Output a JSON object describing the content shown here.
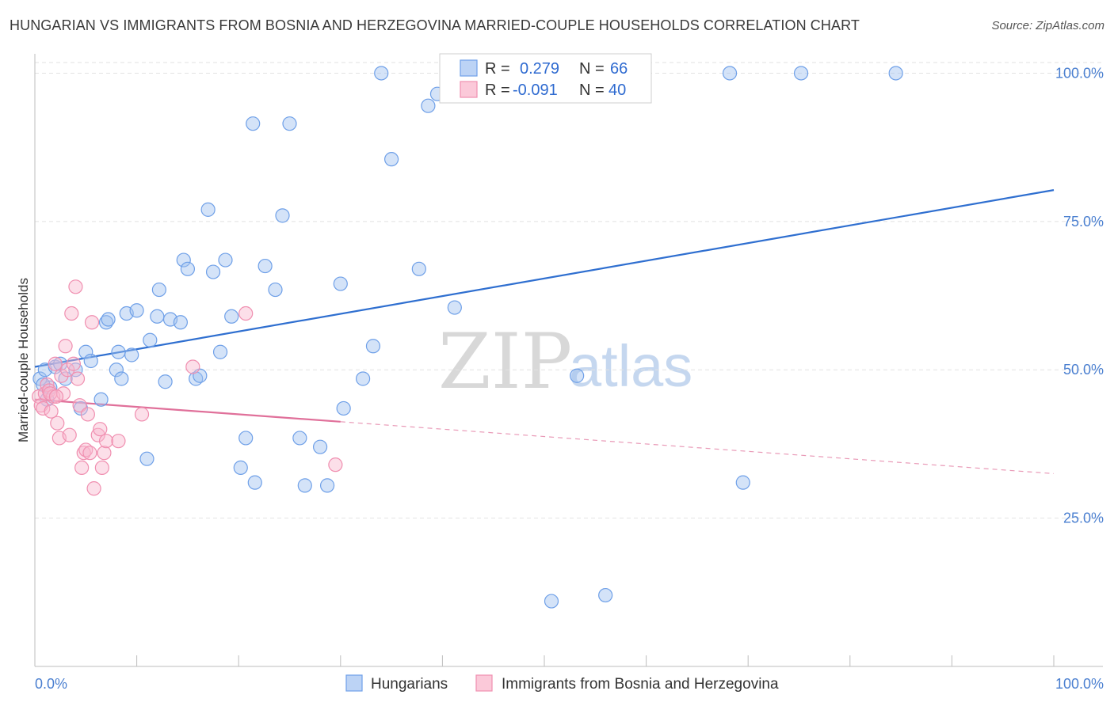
{
  "title": "HUNGARIAN VS IMMIGRANTS FROM BOSNIA AND HERZEGOVINA MARRIED-COUPLE HOUSEHOLDS CORRELATION CHART",
  "source": "Source: ZipAtlas.com",
  "watermark": {
    "zip": "ZIP",
    "atlas": "atlas"
  },
  "legend": {
    "r_label": "R =",
    "n_label": "N =",
    "items": [
      {
        "r": "0.279",
        "n": "66"
      },
      {
        "r": "-0.091",
        "n": "40"
      }
    ]
  },
  "bottom_legend": [
    "Hungarians",
    "Immigrants from Bosnia and Herzegovina"
  ],
  "chart_data": {
    "type": "scatter",
    "title": "HUNGARIAN VS IMMIGRANTS FROM BOSNIA AND HERZEGOVINA MARRIED-COUPLE HOUSEHOLDS CORRELATION CHART",
    "xlabel": "",
    "ylabel": "Married-couple Households",
    "xlim": [
      0,
      100
    ],
    "ylim": [
      0,
      105
    ],
    "x_tick_labels": [
      "0.0%",
      "100.0%"
    ],
    "y_tick_labels": [
      "25.0%",
      "50.0%",
      "75.0%",
      "100.0%"
    ],
    "y_ticks": [
      25,
      50,
      75,
      100
    ],
    "grid": true,
    "legend_placement": "top-center",
    "colors": {
      "hungarians": "#6fa0e8",
      "bosnia": "#f08fb0",
      "hungarians_line": "#2f6fd0",
      "bosnia_line": "#e0709a"
    },
    "series": [
      {
        "name": "Hungarians",
        "r": 0.279,
        "n": 66,
        "trend": {
          "x0": 0,
          "y0": 50.5,
          "x1": 100,
          "y1": 80.3,
          "solid_to": 100
        },
        "points": [
          [
            0.5,
            48.5
          ],
          [
            1,
            50
          ],
          [
            1.2,
            45
          ],
          [
            1.5,
            47
          ],
          [
            2,
            50.5
          ],
          [
            2.5,
            51
          ],
          [
            3,
            48.5
          ],
          [
            4,
            50
          ],
          [
            4.5,
            43.5
          ],
          [
            5,
            53
          ],
          [
            5.5,
            51.5
          ],
          [
            6.5,
            45
          ],
          [
            7,
            58
          ],
          [
            7.2,
            58.5
          ],
          [
            8,
            50
          ],
          [
            8.2,
            53
          ],
          [
            8.5,
            48.5
          ],
          [
            9,
            59.5
          ],
          [
            9.5,
            52.5
          ],
          [
            10,
            60
          ],
          [
            11,
            35
          ],
          [
            11.3,
            55
          ],
          [
            12,
            59
          ],
          [
            12.2,
            63.5
          ],
          [
            12.8,
            48
          ],
          [
            13.3,
            58.5
          ],
          [
            14.3,
            58
          ],
          [
            14.6,
            68.5
          ],
          [
            15,
            67
          ],
          [
            15.8,
            48.5
          ],
          [
            16.2,
            49
          ],
          [
            17,
            77
          ],
          [
            17.5,
            66.5
          ],
          [
            18.2,
            53
          ],
          [
            18.7,
            68.5
          ],
          [
            19.3,
            59
          ],
          [
            20.2,
            33.5
          ],
          [
            20.7,
            38.5
          ],
          [
            21.4,
            91.5
          ],
          [
            21.6,
            31
          ],
          [
            22.6,
            67.5
          ],
          [
            23.6,
            63.5
          ],
          [
            24.3,
            76
          ],
          [
            25,
            91.5
          ],
          [
            26,
            38.5
          ],
          [
            26.5,
            30.5
          ],
          [
            28,
            37
          ],
          [
            28.7,
            30.5
          ],
          [
            30,
            64.5
          ],
          [
            30.3,
            43.5
          ],
          [
            32.2,
            48.5
          ],
          [
            33.2,
            54
          ],
          [
            34,
            100
          ],
          [
            35,
            85.5
          ],
          [
            37.7,
            67
          ],
          [
            38.6,
            94.5
          ],
          [
            39.5,
            96.5
          ],
          [
            41.2,
            60.5
          ],
          [
            50.7,
            11
          ],
          [
            53.2,
            49
          ],
          [
            56,
            12
          ],
          [
            68.2,
            100
          ],
          [
            69.5,
            31
          ],
          [
            75.2,
            100
          ],
          [
            84.5,
            100
          ],
          [
            0.8,
            47.5
          ]
        ]
      },
      {
        "name": "Immigrants from Bosnia and Herzegovina",
        "r": -0.091,
        "n": 40,
        "trend": {
          "x0": 0,
          "y0": 45,
          "x1": 100,
          "y1": 32.5,
          "solid_to": 30
        },
        "points": [
          [
            0.4,
            45.5
          ],
          [
            0.6,
            44
          ],
          [
            0.8,
            43.5
          ],
          [
            1,
            46
          ],
          [
            1.2,
            47.5
          ],
          [
            1.4,
            46.5
          ],
          [
            1.6,
            43
          ],
          [
            1.8,
            45.5
          ],
          [
            2,
            51
          ],
          [
            2.2,
            41
          ],
          [
            2.4,
            38.5
          ],
          [
            2.6,
            49
          ],
          [
            2.8,
            46
          ],
          [
            3,
            54
          ],
          [
            3.2,
            50
          ],
          [
            3.4,
            39
          ],
          [
            3.6,
            59.5
          ],
          [
            3.8,
            51
          ],
          [
            4,
            64
          ],
          [
            4.2,
            48.5
          ],
          [
            4.4,
            44
          ],
          [
            4.6,
            33.5
          ],
          [
            4.8,
            36
          ],
          [
            5,
            36.5
          ],
          [
            5.2,
            42.5
          ],
          [
            5.4,
            36
          ],
          [
            5.6,
            58
          ],
          [
            5.8,
            30
          ],
          [
            6.2,
            39
          ],
          [
            6.4,
            40
          ],
          [
            6.6,
            33.5
          ],
          [
            6.8,
            36
          ],
          [
            7,
            38
          ],
          [
            8.2,
            38
          ],
          [
            10.5,
            42.5
          ],
          [
            15.5,
            50.5
          ],
          [
            20.7,
            59.5
          ],
          [
            29.5,
            34
          ],
          [
            1.5,
            46
          ],
          [
            2.1,
            45.5
          ]
        ]
      }
    ]
  }
}
